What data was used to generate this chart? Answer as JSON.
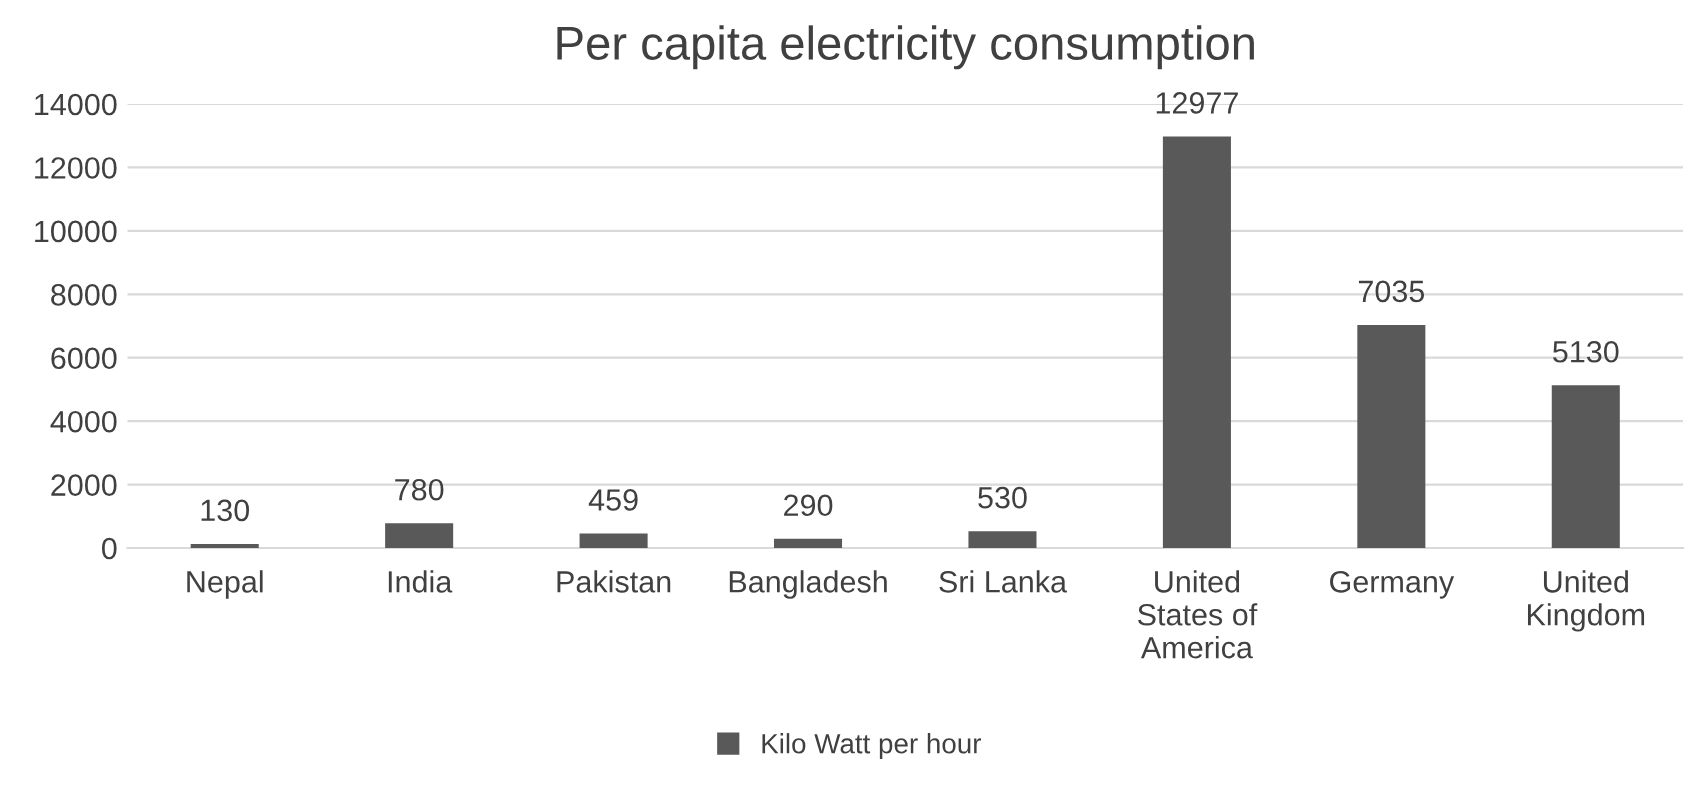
{
  "chart_data": {
    "type": "bar",
    "title": "Per capita electricity consumption",
    "categories": [
      "Nepal",
      "India",
      "Pakistan",
      "Bangladesh",
      "Sri Lanka",
      "United States of America",
      "Germany",
      "United Kingdom"
    ],
    "series": [
      {
        "name": "Kilo Watt per hour",
        "color": "#595959",
        "values": [
          130,
          780,
          459,
          290,
          530,
          12977,
          7035,
          5130
        ]
      }
    ],
    "ylim": [
      0,
      14000
    ],
    "yticks": [
      0,
      2000,
      4000,
      6000,
      8000,
      10000,
      12000,
      14000
    ],
    "grid": "y",
    "legend": "bottom",
    "data_labels": true
  }
}
